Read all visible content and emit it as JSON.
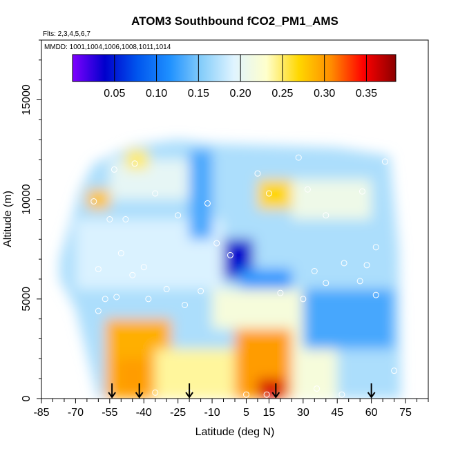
{
  "chart_data": {
    "type": "heatmap",
    "title": "ATOM3 Southbound fCO2_PM1_AMS",
    "flights_note": "Flts: 2,3,4,5,6,7",
    "mmdd_note": "MMDD: 1001,1004,1006,1008,1011,1014",
    "xlabel": "Latitude (deg N)",
    "ylabel": "Altitude (m)",
    "xlim": [
      -85,
      85
    ],
    "ylim": [
      0,
      18000
    ],
    "x_ticks": [
      -85,
      -70,
      -55,
      -40,
      -25,
      -10,
      5,
      15,
      30,
      45,
      60,
      75
    ],
    "y_ticks": [
      0,
      5000,
      10000,
      15000
    ],
    "colorbar": {
      "min": 0.0,
      "max": 0.385,
      "ticks": [
        0.05,
        0.1,
        0.15,
        0.2,
        0.25,
        0.3,
        0.35
      ],
      "tick_labels": [
        "0.05",
        "0.10",
        "0.15",
        "0.20",
        "0.25",
        "0.30",
        "0.35"
      ],
      "colors": [
        "#7f00ff",
        "#0000cc",
        "#0055ee",
        "#1e90ff",
        "#87cefa",
        "#e0f4ff",
        "#ffffcc",
        "#ffd700",
        "#ff8c00",
        "#ff0000",
        "#8b0000"
      ]
    },
    "profile_arrows_lat": [
      -54,
      -42,
      -20,
      18,
      60
    ],
    "grid": "none",
    "legend": "colorbar top",
    "regions": [
      {
        "lat": [
          -57,
          -28
        ],
        "alt": [
          0,
          4000
        ],
        "value": 0.29
      },
      {
        "lat": [
          -52,
          -38
        ],
        "alt": [
          0,
          2000
        ],
        "value": 0.3
      },
      {
        "lat": [
          -35,
          0
        ],
        "alt": [
          0,
          2500
        ],
        "value": 0.24
      },
      {
        "lat": [
          0,
          25
        ],
        "alt": [
          0,
          3500
        ],
        "value": 0.3
      },
      {
        "lat": [
          10,
          22
        ],
        "alt": [
          0,
          1000
        ],
        "value": 0.36
      },
      {
        "lat": [
          25,
          45
        ],
        "alt": [
          0,
          3500
        ],
        "value": 0.22
      },
      {
        "lat": [
          -10,
          30
        ],
        "alt": [
          3500,
          5500
        ],
        "value": 0.22
      },
      {
        "lat": [
          30,
          70
        ],
        "alt": [
          2500,
          5500
        ],
        "value": 0.13
      },
      {
        "lat": [
          -20,
          -5
        ],
        "alt": [
          5500,
          7000
        ],
        "value": 0.14
      },
      {
        "lat": [
          -5,
          8
        ],
        "alt": [
          6000,
          8000
        ],
        "value": 0.04
      },
      {
        "lat": [
          2,
          25
        ],
        "alt": [
          5500,
          6500
        ],
        "value": 0.12
      },
      {
        "lat": [
          -70,
          -5
        ],
        "alt": [
          5500,
          9000
        ],
        "value": 0.19
      },
      {
        "lat": [
          -20,
          -10
        ],
        "alt": [
          8000,
          12500
        ],
        "value": 0.13
      },
      {
        "lat": [
          10,
          25
        ],
        "alt": [
          9500,
          11000
        ],
        "value": 0.27
      },
      {
        "lat": [
          25,
          60
        ],
        "alt": [
          9000,
          11000
        ],
        "value": 0.21
      },
      {
        "lat": [
          30,
          60
        ],
        "alt": [
          6500,
          9000
        ],
        "value": 0.17
      },
      {
        "lat": [
          -65,
          -55
        ],
        "alt": [
          9500,
          10500
        ],
        "value": 0.28
      },
      {
        "lat": [
          -55,
          -20
        ],
        "alt": [
          10000,
          12000
        ],
        "value": 0.2
      },
      {
        "lat": [
          -48,
          -38
        ],
        "alt": [
          11500,
          12500
        ],
        "value": 0.25
      }
    ],
    "sample_points": [
      {
        "lat": -60,
        "alt": 4400
      },
      {
        "lat": -57,
        "alt": 5000
      },
      {
        "lat": -52,
        "alt": 5100
      },
      {
        "lat": -38,
        "alt": 5000
      },
      {
        "lat": -30,
        "alt": 5500
      },
      {
        "lat": -22,
        "alt": 4700
      },
      {
        "lat": -15,
        "alt": 5400
      },
      {
        "lat": 20,
        "alt": 5300
      },
      {
        "lat": 30,
        "alt": 5000
      },
      {
        "lat": 40,
        "alt": 5800
      },
      {
        "lat": 55,
        "alt": 5900
      },
      {
        "lat": 62,
        "alt": 5200
      },
      {
        "lat": 70,
        "alt": 1400
      },
      {
        "lat": -2,
        "alt": 7200
      },
      {
        "lat": -8,
        "alt": 7800
      },
      {
        "lat": -45,
        "alt": 6200
      },
      {
        "lat": -40,
        "alt": 6600
      },
      {
        "lat": -60,
        "alt": 6500
      },
      {
        "lat": -50,
        "alt": 7300
      },
      {
        "lat": 35,
        "alt": 6400
      },
      {
        "lat": 48,
        "alt": 6800
      },
      {
        "lat": 58,
        "alt": 6700
      },
      {
        "lat": -48,
        "alt": 9000
      },
      {
        "lat": -35,
        "alt": 10300
      },
      {
        "lat": -25,
        "alt": 9200
      },
      {
        "lat": -12,
        "alt": 9800
      },
      {
        "lat": 15,
        "alt": 10300
      },
      {
        "lat": 32,
        "alt": 10500
      },
      {
        "lat": 40,
        "alt": 9200
      },
      {
        "lat": 56,
        "alt": 10400
      },
      {
        "lat": -53,
        "alt": 11500
      },
      {
        "lat": -44,
        "alt": 11800
      },
      {
        "lat": 10,
        "alt": 11300
      },
      {
        "lat": 28,
        "alt": 12100
      },
      {
        "lat": 66,
        "alt": 11900
      },
      {
        "lat": -62,
        "alt": 9900
      },
      {
        "lat": -55,
        "alt": 9000
      },
      {
        "lat": 62,
        "alt": 7600
      },
      {
        "lat": -20,
        "alt": 300
      },
      {
        "lat": -35,
        "alt": 300
      },
      {
        "lat": 5,
        "alt": 200
      },
      {
        "lat": 14,
        "alt": 200
      },
      {
        "lat": 36,
        "alt": 500
      },
      {
        "lat": 47,
        "alt": 200
      }
    ]
  }
}
